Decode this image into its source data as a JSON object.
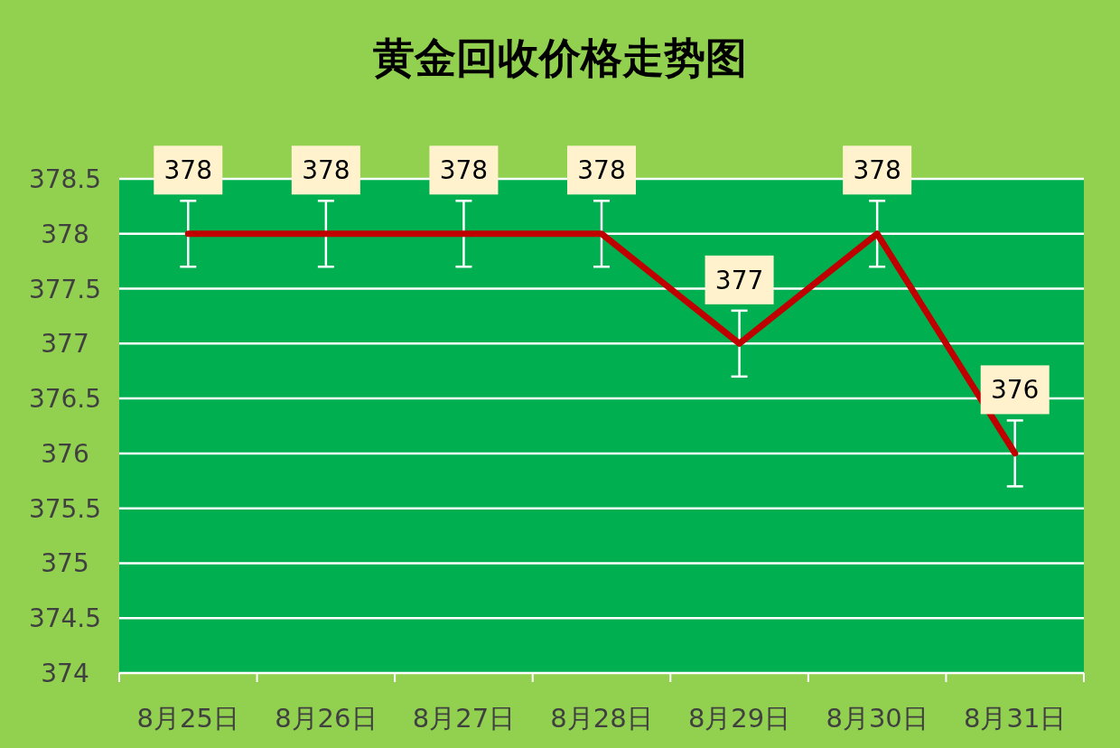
{
  "chart_data": {
    "type": "line",
    "title": "黄金回收价格走势图",
    "categories": [
      "8月25日",
      "8月26日",
      "8月27日",
      "8月28日",
      "8月29日",
      "8月30日",
      "8月31日"
    ],
    "values": [
      378,
      378,
      378,
      378,
      377,
      378,
      376
    ],
    "errors": [
      0.3,
      0.3,
      0.3,
      0.3,
      0.3,
      0.3,
      0.3
    ],
    "color": "#c00000",
    "ylim": [
      374,
      378.5
    ],
    "yticks": [
      374,
      374.5,
      375,
      375.5,
      376,
      376.5,
      377,
      377.5,
      378,
      378.5
    ],
    "grid": "y",
    "data_labels": true
  }
}
